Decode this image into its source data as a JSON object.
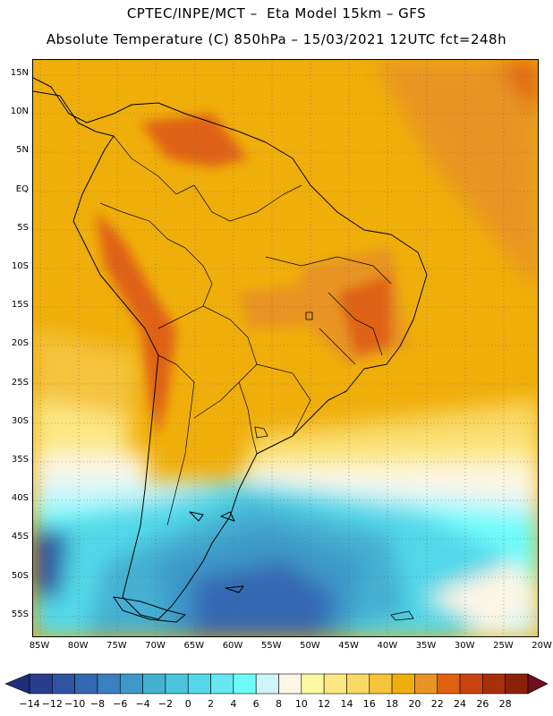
{
  "header": {
    "line1": "CPTEC/INPE/MCT –  Eta Model 15km – GFS",
    "line2": "Absolute Temperature (C) 850hPa – 15/03/2021 12UTC fct=248h"
  },
  "map": {
    "lat_ticks": [
      "15N",
      "10N",
      "5N",
      "EQ",
      "5S",
      "10S",
      "15S",
      "20S",
      "25S",
      "30S",
      "35S",
      "40S",
      "45S",
      "50S",
      "55S"
    ],
    "lon_ticks": [
      "85W",
      "80W",
      "75W",
      "70W",
      "65W",
      "60W",
      "55W",
      "50W",
      "45W",
      "40W",
      "35W",
      "30W",
      "25W",
      "20W"
    ],
    "lat_range": [
      17.5,
      -57.5
    ],
    "lon_range": [
      -86,
      -20.5
    ]
  },
  "legend": {
    "labels": [
      "-14",
      "-12",
      "-10",
      "-8",
      "-6",
      "-4",
      "-2",
      "0",
      "2",
      "4",
      "6",
      "8",
      "10",
      "12",
      "14",
      "16",
      "18",
      "20",
      "22",
      "24",
      "26",
      "28"
    ],
    "colors": [
      "#2a3c8e",
      "#2f52a2",
      "#3468b2",
      "#3a7fbf",
      "#3e98c8",
      "#44b0d2",
      "#4ac5dc",
      "#52d8e8",
      "#66e6f0",
      "#70fbfb",
      "#cdf6fb",
      "#fdf6e4",
      "#fdf7a0",
      "#fbe883",
      "#f9d966",
      "#f5c33c",
      "#f0ae0a",
      "#e89424",
      "#df6212",
      "#c9430e",
      "#a83008",
      "#8a2208"
    ]
  }
}
